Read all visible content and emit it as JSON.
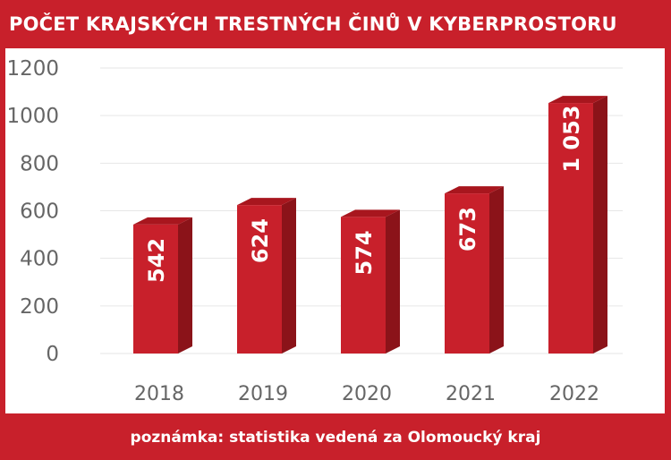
{
  "header": {
    "title": "POČET KRAJSKÝCH TRESTNÝCH ČINŮ V KYBERPROSTORU"
  },
  "footer": {
    "note": "poznámka: statistika vedená za Olomoucký kraj"
  },
  "chart_data": {
    "type": "bar",
    "title": "POČET KRAJSKÝCH TRESTNÝCH ČINŮ V KYBERPROSTORU",
    "categories": [
      "2018",
      "2019",
      "2020",
      "2021",
      "2022"
    ],
    "values": [
      542,
      624,
      574,
      673,
      1053
    ],
    "value_labels": [
      "542",
      "624",
      "574",
      "673",
      "1 053"
    ],
    "yticks": [
      0,
      200,
      400,
      600,
      800,
      1000,
      1200
    ],
    "ylim": [
      0,
      1200
    ],
    "xlabel": "",
    "ylabel": "",
    "grid": true,
    "legend": "none",
    "colors": {
      "bar_front": "#c8202b",
      "bar_side": "#8b1319",
      "bar_top": "#a8161e",
      "grid": "#e6e6e6",
      "axis_text": "#666666",
      "value_text": "#ffffff",
      "frame": "#c8202b"
    }
  }
}
